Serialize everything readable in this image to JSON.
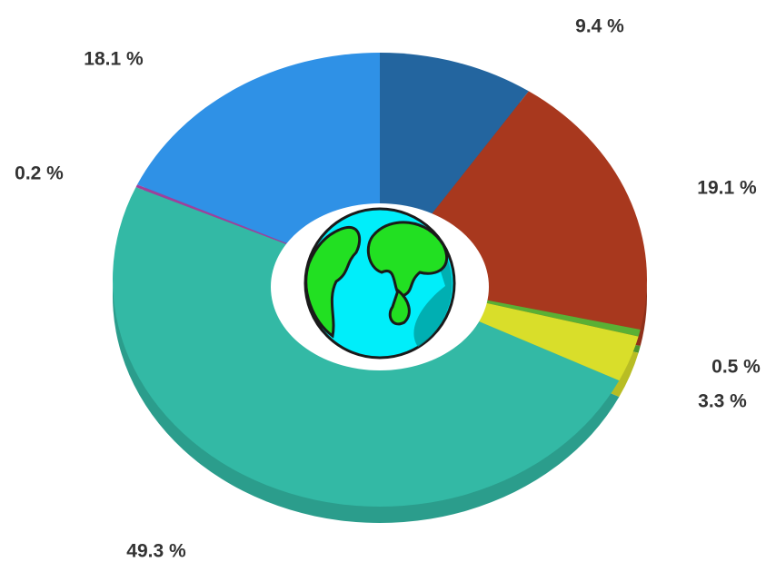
{
  "chart_data": {
    "type": "donut",
    "values": [
      9.4,
      19.1,
      0.5,
      3.3,
      49.3,
      0.2,
      18.1
    ],
    "value_labels": [
      "9.4 %",
      "19.1 %",
      "0.5 %",
      "3.3 %",
      "49.3 %",
      "0.2 %",
      "18.1 %"
    ],
    "colors": [
      "#23659f",
      "#a8381e",
      "#5ab034",
      "#d9de2a",
      "#33b9a5",
      "#a0409a",
      "#2f91e6"
    ]
  }
}
